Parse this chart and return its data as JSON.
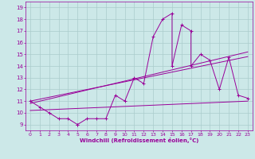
{
  "xlabel": "Windchill (Refroidissement éolien,°C)",
  "bg_color": "#cce8e8",
  "line_color": "#990099",
  "grid_color": "#aacccc",
  "xlim": [
    -0.5,
    23.5
  ],
  "ylim": [
    8.5,
    19.5
  ],
  "xticks": [
    0,
    1,
    2,
    3,
    4,
    5,
    6,
    7,
    8,
    9,
    10,
    11,
    12,
    13,
    14,
    15,
    16,
    17,
    18,
    19,
    20,
    21,
    22,
    23
  ],
  "yticks": [
    9,
    10,
    11,
    12,
    13,
    14,
    15,
    16,
    17,
    18,
    19
  ],
  "scatter_x": [
    0,
    1,
    2,
    3,
    4,
    5,
    5,
    6,
    7,
    8,
    9,
    10,
    11,
    12,
    13,
    14,
    15,
    15,
    16,
    17,
    17,
    18,
    19,
    20,
    21,
    22,
    23
  ],
  "scatter_y": [
    11,
    10.5,
    10,
    9.5,
    9.5,
    9,
    9,
    9.5,
    9.5,
    9.5,
    11.5,
    11,
    13,
    12.5,
    16.5,
    18,
    18.5,
    14,
    17.5,
    17,
    14,
    15,
    14.5,
    12,
    14.75,
    11.5,
    11.25
  ],
  "line1_x": [
    0,
    23
  ],
  "line1_y": [
    11.0,
    14.8
  ],
  "line2_x": [
    0,
    23
  ],
  "line2_y": [
    10.8,
    15.2
  ],
  "line3_x": [
    0,
    23
  ],
  "line3_y": [
    10.2,
    11.0
  ]
}
